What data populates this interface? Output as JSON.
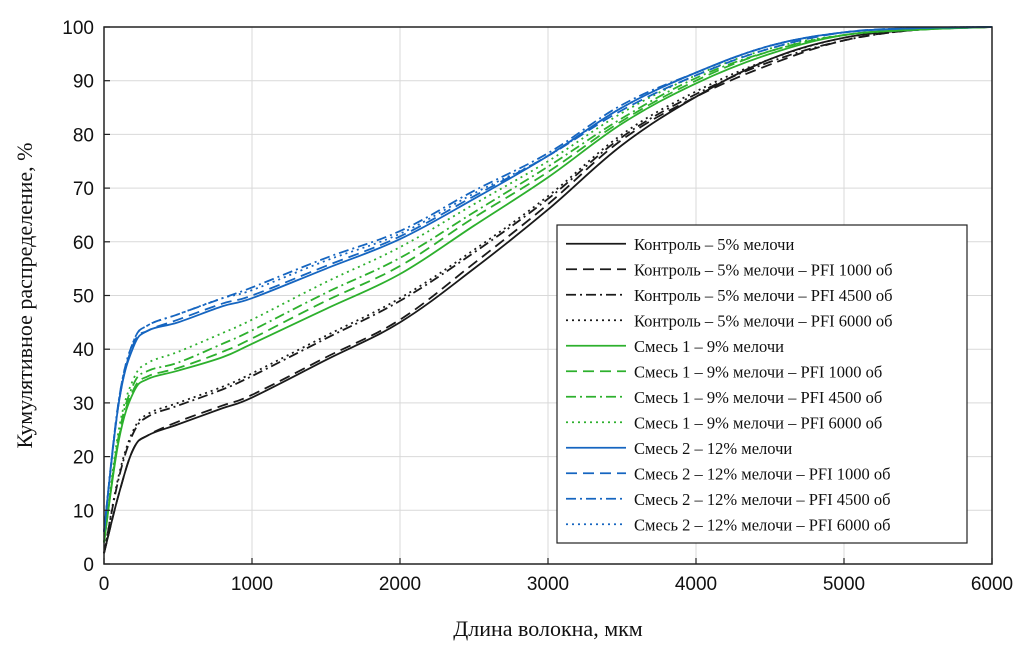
{
  "chart_data": {
    "type": "line",
    "title": "",
    "xlabel": "Длина волокна, мкм",
    "ylabel": "Кумулятивное распределение, %",
    "xlim": [
      0,
      6000
    ],
    "ylim": [
      0,
      100
    ],
    "xticks": [
      0,
      1000,
      2000,
      3000,
      4000,
      5000,
      6000
    ],
    "yticks": [
      0,
      10,
      20,
      30,
      40,
      50,
      60,
      70,
      80,
      90,
      100
    ],
    "grid": true,
    "legend_position": "right",
    "x": [
      0,
      100,
      200,
      300,
      500,
      800,
      1000,
      1500,
      2000,
      2500,
      3000,
      3500,
      4000,
      4500,
      5000,
      5500,
      6000
    ],
    "series": [
      {
        "name": "Контроль – 5% мелочи",
        "color": "#1a1a1a",
        "dash": "solid",
        "values": [
          2,
          13,
          21.5,
          24,
          26,
          29,
          31,
          38,
          45,
          55,
          66,
          78,
          87,
          94,
          98,
          99.5,
          100
        ]
      },
      {
        "name": "Контроль – 5% мелочи – PFI 1000 об",
        "color": "#1a1a1a",
        "dash": "dashed",
        "values": [
          2,
          13,
          21.5,
          24,
          26.5,
          29.5,
          31.5,
          38.5,
          45.5,
          56,
          67,
          79,
          87,
          93,
          97.5,
          99.5,
          100
        ]
      },
      {
        "name": "Контроль – 5% мелочи – PFI 4500 об",
        "color": "#1a1a1a",
        "dash": "dashdot",
        "values": [
          2,
          16,
          24.5,
          27.5,
          29.5,
          32.5,
          35,
          42,
          49,
          58,
          68,
          79.5,
          87.5,
          93.5,
          97.5,
          99.5,
          100
        ]
      },
      {
        "name": "Контроль – 5% мелочи – PFI 6000 об",
        "color": "#1a1a1a",
        "dash": "dotted",
        "values": [
          2,
          16.5,
          25,
          28,
          30,
          33,
          35.5,
          42.5,
          49.5,
          58.5,
          68.5,
          80,
          88,
          94,
          98,
          99.5,
          100
        ]
      },
      {
        "name": "Смесь 1 – 9% мелочи",
        "color": "#2db02d",
        "dash": "solid",
        "values": [
          4,
          23,
          32,
          34.5,
          36,
          38.5,
          41,
          47.5,
          54,
          63,
          72,
          82,
          89.5,
          95,
          98.5,
          99.5,
          100
        ]
      },
      {
        "name": "Смесь 1 – 9% мелочи – PFI 1000 об",
        "color": "#2db02d",
        "dash": "dashed",
        "values": [
          4,
          23.5,
          32.5,
          35,
          36.5,
          39.5,
          42,
          49,
          55.5,
          64.5,
          73,
          82.5,
          90,
          95.5,
          98.5,
          99.5,
          100
        ]
      },
      {
        "name": "Смесь 1 – 9% мелочи – PFI 4500 об",
        "color": "#2db02d",
        "dash": "dashdot",
        "values": [
          4,
          24,
          33.5,
          36,
          37.5,
          41,
          43.5,
          50.5,
          57,
          65.5,
          74,
          83,
          90.5,
          95.5,
          98.5,
          99.5,
          100
        ]
      },
      {
        "name": "Смесь 1 – 9% мелочи – PFI 6000 об",
        "color": "#2db02d",
        "dash": "dotted",
        "values": [
          4,
          25,
          34.5,
          37.5,
          39.5,
          43,
          45.5,
          52.5,
          59,
          67,
          75,
          84,
          91,
          96,
          98.5,
          99.5,
          100
        ]
      },
      {
        "name": "Смесь 2 – 12% мелочи",
        "color": "#1565c0",
        "dash": "solid",
        "values": [
          6,
          30,
          40.5,
          43.5,
          45,
          48,
          49.5,
          55,
          60.5,
          68,
          76,
          85,
          91.5,
          96.5,
          99,
          99.8,
          100
        ]
      },
      {
        "name": "Смесь 2 – 12% мелочи – PFI 1000 об",
        "color": "#1565c0",
        "dash": "dashed",
        "values": [
          6,
          30,
          41,
          43.5,
          45.5,
          48.5,
          50,
          55.5,
          61,
          68.5,
          76,
          84.5,
          91,
          96,
          99,
          99.8,
          100
        ]
      },
      {
        "name": "Смесь 2 – 12% мелочи – PFI 4500 об",
        "color": "#1565c0",
        "dash": "dashdot",
        "values": [
          6,
          30.5,
          41.5,
          44.5,
          46.5,
          49.5,
          51.5,
          57,
          62,
          69.5,
          76.5,
          85.5,
          91.5,
          96.5,
          99,
          99.8,
          100
        ]
      },
      {
        "name": "Смесь 2 – 12% мелочи – PFI 6000 об",
        "color": "#1565c0",
        "dash": "dotted",
        "values": [
          6,
          30.5,
          41.5,
          44.5,
          46.5,
          49.5,
          51,
          56.5,
          61.5,
          69,
          76,
          85,
          91.5,
          96.5,
          99,
          99.8,
          100
        ]
      }
    ]
  }
}
